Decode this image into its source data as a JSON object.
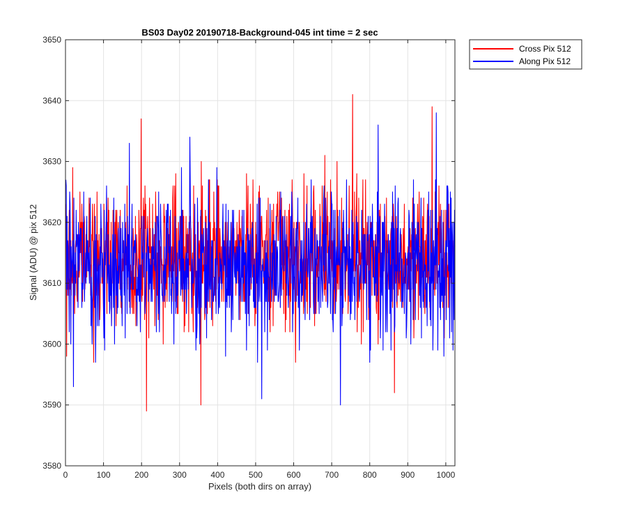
{
  "chart_data": {
    "type": "line",
    "title": "BS03 Day02 20190718-Background-045 int time = 2 sec",
    "xlabel": "Pixels (both dirs on array)",
    "ylabel": "Signal (ADU) @ pix 512",
    "xlim": [
      0,
      1024
    ],
    "ylim": [
      3580,
      3650
    ],
    "xticks": [
      0,
      100,
      200,
      300,
      400,
      500,
      600,
      700,
      800,
      900,
      1000
    ],
    "yticks": [
      3580,
      3590,
      3600,
      3610,
      3620,
      3630,
      3640,
      3650
    ],
    "grid": true,
    "legend_position": "outside-top-right",
    "series": [
      {
        "name": "Cross Pix 512",
        "color": "#ff0000",
        "mean": 3614,
        "noise_range": [
          3589,
          3641
        ],
        "notable_points": [
          {
            "x": 3,
            "y": 3598
          },
          {
            "x": 199,
            "y": 3637
          },
          {
            "x": 213,
            "y": 3589
          },
          {
            "x": 356,
            "y": 3590
          },
          {
            "x": 755,
            "y": 3641
          },
          {
            "x": 865,
            "y": 3592
          },
          {
            "x": 964,
            "y": 3639
          }
        ]
      },
      {
        "name": "Along Pix 512",
        "color": "#0000ff",
        "mean": 3613,
        "noise_range": [
          3590,
          3638
        ],
        "notable_points": [
          {
            "x": 21,
            "y": 3593
          },
          {
            "x": 168,
            "y": 3633
          },
          {
            "x": 327,
            "y": 3634
          },
          {
            "x": 516,
            "y": 3591
          },
          {
            "x": 723,
            "y": 3590
          },
          {
            "x": 822,
            "y": 3636
          },
          {
            "x": 975,
            "y": 3638
          },
          {
            "x": 995,
            "y": 3598
          }
        ]
      }
    ]
  }
}
